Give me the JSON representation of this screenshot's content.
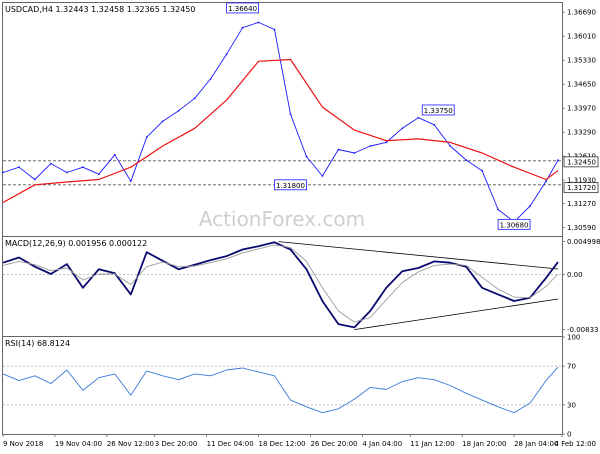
{
  "colors": {
    "price": "#1a1aff",
    "ma": "#ee1111",
    "macd": "#0a0a6e",
    "signal": "#9c9c9c",
    "rsi": "#3a7ad8",
    "label_box": "#1a1aff",
    "trendline": "#000000"
  },
  "watermark": "ActionForex.com",
  "chart_data": [
    {
      "type": "line",
      "panel": "price",
      "header": "USDCAD,H4  1.32443 1.32458 1.32365 1.32450",
      "ylim": [
        1.3035,
        1.3695
      ],
      "yticks": [
        "1.36690",
        "1.36010",
        "1.35330",
        "1.34650",
        "1.33970",
        "1.33290",
        "1.32610",
        "1.31930",
        "1.31270",
        "1.30590"
      ],
      "ytick_values": [
        1.3669,
        1.3601,
        1.3533,
        1.3465,
        1.3397,
        1.3329,
        1.3261,
        1.3193,
        1.3127,
        1.3059
      ],
      "grid_lines": [
        1.3248,
        1.318
      ],
      "price_tags": [
        {
          "label": "1.32450",
          "value": 1.3245
        },
        {
          "label": "1.31720",
          "value": 1.3172
        }
      ],
      "annotations": [
        {
          "label": "1.36640",
          "x": 60,
          "y": 1.3664
        },
        {
          "label": "1.31800",
          "x": 72,
          "y": 1.318
        },
        {
          "label": "1.33750",
          "x": 109,
          "y": 1.3375
        },
        {
          "label": "1.30680",
          "x": 128,
          "y": 1.3068
        }
      ],
      "series": [
        {
          "key": "price",
          "x": [
            0,
            4,
            8,
            12,
            16,
            20,
            24,
            28,
            32,
            36,
            40,
            44,
            48,
            52,
            56,
            60,
            64,
            68,
            72,
            76,
            80,
            84,
            88,
            92,
            96,
            100,
            104,
            108,
            112,
            116,
            120,
            124,
            128,
            132,
            136,
            139
          ],
          "values": [
            1.3215,
            1.323,
            1.3195,
            1.324,
            1.3215,
            1.323,
            1.321,
            1.3265,
            1.319,
            1.3315,
            1.336,
            1.339,
            1.3425,
            1.348,
            1.355,
            1.3625,
            1.364,
            1.362,
            1.338,
            1.326,
            1.3205,
            1.328,
            1.327,
            1.329,
            1.33,
            1.334,
            1.337,
            1.335,
            1.329,
            1.325,
            1.322,
            1.311,
            1.3075,
            1.312,
            1.319,
            1.325
          ]
        },
        {
          "key": "ma",
          "x": [
            0,
            8,
            16,
            24,
            32,
            40,
            48,
            56,
            64,
            72,
            80,
            88,
            96,
            104,
            112,
            120,
            128,
            136,
            139
          ],
          "values": [
            1.313,
            1.318,
            1.3188,
            1.3195,
            1.323,
            1.329,
            1.334,
            1.342,
            1.353,
            1.3535,
            1.34,
            1.3335,
            1.3305,
            1.331,
            1.33,
            1.327,
            1.323,
            1.3195,
            1.322
          ]
        }
      ]
    },
    {
      "type": "line",
      "panel": "macd",
      "header": "MACD(12,26,9) 0.001956 0.000122",
      "ylim": [
        -0.0093,
        0.0057
      ],
      "yticks": [
        "0.004998",
        "0.00",
        "-0.00833"
      ],
      "ytick_values": [
        0.004998,
        0.0,
        -0.00833
      ],
      "trendlines": [
        {
          "x": [
            69,
            139
          ],
          "values": [
            0.004998,
            0.00085
          ]
        },
        {
          "x": [
            88,
            139
          ],
          "values": [
            -0.00833,
            -0.0037
          ]
        }
      ],
      "series": [
        {
          "key": "macd",
          "x": [
            0,
            4,
            8,
            12,
            16,
            20,
            24,
            28,
            32,
            36,
            40,
            44,
            48,
            52,
            56,
            60,
            64,
            68,
            72,
            76,
            80,
            84,
            88,
            92,
            96,
            100,
            104,
            108,
            112,
            116,
            120,
            124,
            128,
            132,
            136,
            139
          ],
          "values": [
            0.0018,
            0.0026,
            0.0012,
            0.0001,
            0.0016,
            -0.002,
            0.0008,
            0.0002,
            -0.003,
            0.0034,
            0.0021,
            0.0008,
            0.0015,
            0.0022,
            0.0028,
            0.0038,
            0.0043,
            0.0049,
            0.0038,
            0.0008,
            -0.004,
            -0.0075,
            -0.008,
            -0.0055,
            -0.002,
            0.0005,
            0.001,
            0.002,
            0.0018,
            0.0012,
            -0.002,
            -0.003,
            -0.004,
            -0.0035,
            -0.0005,
            0.0019
          ]
        },
        {
          "key": "signal",
          "x": [
            0,
            4,
            8,
            12,
            16,
            20,
            24,
            28,
            32,
            36,
            40,
            44,
            48,
            52,
            56,
            60,
            64,
            68,
            72,
            76,
            80,
            84,
            88,
            92,
            96,
            100,
            104,
            108,
            112,
            116,
            120,
            124,
            128,
            132,
            136,
            139
          ],
          "values": [
            0.0014,
            0.002,
            0.0015,
            0.0006,
            0.001,
            -0.0008,
            0.0001,
            0.0001,
            -0.0015,
            0.0012,
            0.0019,
            0.0012,
            0.0013,
            0.0018,
            0.0024,
            0.0033,
            0.0039,
            0.0045,
            0.0041,
            0.002,
            -0.002,
            -0.0055,
            -0.0072,
            -0.0065,
            -0.0038,
            -0.0012,
            0.0004,
            0.0014,
            0.0016,
            0.0014,
            -0.0004,
            -0.0022,
            -0.0034,
            -0.0035,
            -0.0018,
            0.0001
          ]
        }
      ]
    },
    {
      "type": "line",
      "panel": "rsi",
      "header": "RSI(14) 68.8124",
      "ylim": [
        0,
        100
      ],
      "yticks": [
        "100",
        "70",
        "30",
        "0"
      ],
      "ytick_values": [
        100,
        70,
        30,
        0
      ],
      "levels": [
        70,
        30
      ],
      "xlabels": [
        "9 Nov 2018",
        "19 Nov 04:00",
        "26 Nov 12:00",
        "3 Dec 20:00",
        "11 Dec 04:00",
        "18 Dec 12:00",
        "26 Dec 20:00",
        "4 Jan 04:00",
        "11 Jan 12:00",
        "18 Jan 20:00",
        "28 Jan 04:00",
        "4 Feb 12:00"
      ],
      "xlabel_positions": [
        0,
        13,
        26,
        38,
        51,
        64,
        77,
        90,
        102,
        115,
        128,
        140
      ],
      "series": [
        {
          "key": "rsi",
          "x": [
            0,
            4,
            8,
            12,
            16,
            20,
            24,
            28,
            32,
            36,
            40,
            44,
            48,
            52,
            56,
            60,
            64,
            68,
            72,
            76,
            80,
            84,
            88,
            92,
            96,
            100,
            104,
            108,
            112,
            116,
            120,
            124,
            128,
            132,
            136,
            139
          ],
          "values": [
            62,
            55,
            60,
            52,
            66,
            45,
            58,
            62,
            40,
            65,
            60,
            56,
            62,
            60,
            66,
            68,
            64,
            60,
            35,
            28,
            22,
            26,
            36,
            48,
            46,
            54,
            58,
            56,
            50,
            42,
            35,
            28,
            22,
            32,
            55,
            69
          ]
        }
      ]
    }
  ]
}
